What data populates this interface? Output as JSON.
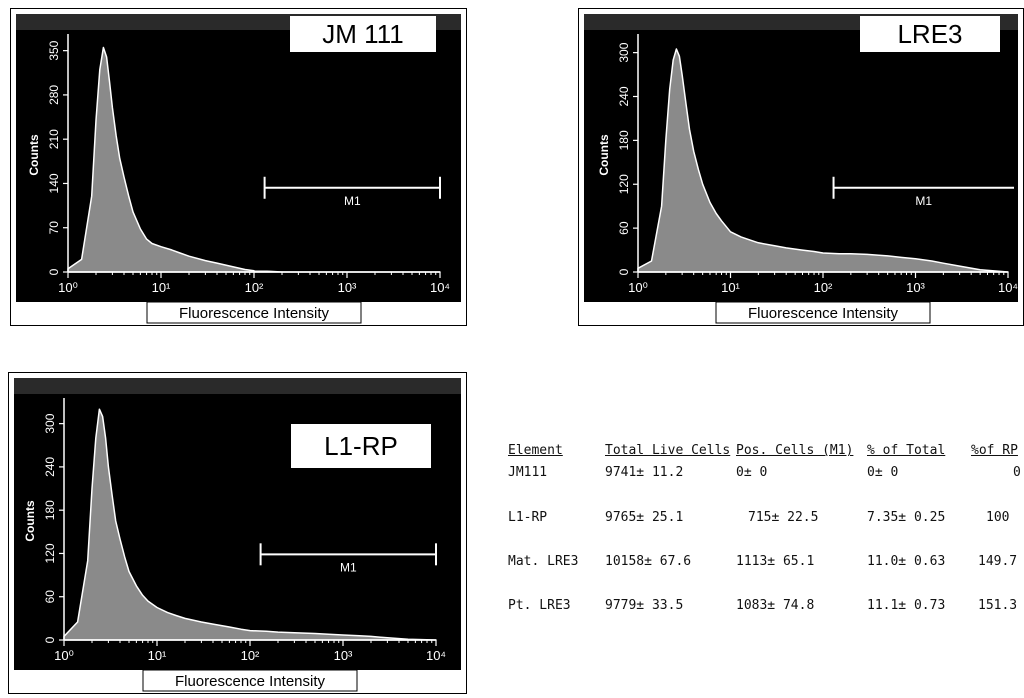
{
  "chart_data": [
    {
      "type": "area",
      "title": "JM 111",
      "xlabel": "Fluorescence Intensity",
      "ylabel": "Counts",
      "xscale": "log",
      "xlim": [
        1,
        10000
      ],
      "ylim": [
        0,
        370
      ],
      "yticks": [
        0,
        70,
        140,
        210,
        280,
        350
      ],
      "x_tick_labels": [
        "10⁰",
        "10¹",
        "10²",
        "10³",
        "10⁴"
      ],
      "ytick_labels": [
        "0",
        "70",
        "140",
        "210",
        "280",
        "350"
      ],
      "marker_label": "M1",
      "marker_range": [
        130,
        10000
      ],
      "x": [
        1,
        1.4,
        1.8,
        2.0,
        2.2,
        2.4,
        2.6,
        2.8,
        3.0,
        3.3,
        3.6,
        4.0,
        4.5,
        5.0,
        6.0,
        7.0,
        8.0,
        10,
        13,
        16,
        20,
        30,
        40,
        60,
        80,
        100,
        150,
        200,
        500,
        1000,
        10000
      ],
      "values": [
        5,
        20,
        120,
        240,
        320,
        355,
        340,
        300,
        260,
        215,
        180,
        150,
        120,
        95,
        68,
        52,
        45,
        40,
        35,
        30,
        25,
        18,
        14,
        8,
        4,
        2,
        1,
        0,
        0,
        0,
        0
      ]
    },
    {
      "type": "area",
      "title": "LRE3",
      "xlabel": "Fluorescence Intensity",
      "ylabel": "Counts",
      "xscale": "log",
      "xlim": [
        1,
        10000
      ],
      "ylim": [
        0,
        320
      ],
      "yticks": [
        0,
        60,
        120,
        180,
        240,
        300
      ],
      "x_tick_labels": [
        "10⁰",
        "10¹",
        "10²",
        "10³",
        "10⁴"
      ],
      "ytick_labels": [
        "0",
        "60",
        "120",
        "180",
        "240",
        "300"
      ],
      "marker_label": "M1",
      "marker_range": [
        130,
        10000
      ],
      "x": [
        1,
        1.4,
        1.8,
        2.0,
        2.2,
        2.4,
        2.6,
        2.8,
        3.0,
        3.3,
        3.6,
        4.0,
        4.5,
        5.0,
        6.0,
        7.0,
        8.0,
        10,
        13,
        16,
        20,
        30,
        40,
        60,
        80,
        100,
        150,
        200,
        300,
        500,
        700,
        1000,
        1500,
        2000,
        3000,
        5000,
        10000
      ],
      "values": [
        5,
        15,
        90,
        180,
        250,
        290,
        305,
        295,
        270,
        230,
        195,
        165,
        140,
        120,
        95,
        80,
        70,
        55,
        48,
        44,
        40,
        36,
        33,
        30,
        28,
        26,
        25,
        25,
        24,
        22,
        20,
        18,
        15,
        12,
        8,
        3,
        0
      ]
    },
    {
      "type": "area",
      "title": "L1-RP",
      "xlabel": "Fluorescence Intensity",
      "ylabel": "Counts",
      "xscale": "log",
      "xlim": [
        1,
        10000
      ],
      "ylim": [
        0,
        330
      ],
      "yticks": [
        0,
        60,
        120,
        180,
        240,
        300
      ],
      "x_tick_labels": [
        "10⁰",
        "10¹",
        "10²",
        "10³",
        "10⁴"
      ],
      "ytick_labels": [
        "0",
        "60",
        "120",
        "180",
        "240",
        "300"
      ],
      "marker_label": "M1",
      "marker_range": [
        130,
        10000
      ],
      "x": [
        1,
        1.4,
        1.8,
        2.0,
        2.2,
        2.4,
        2.6,
        2.8,
        3.0,
        3.3,
        3.6,
        4.0,
        4.5,
        5.0,
        6.0,
        7.0,
        8.0,
        10,
        13,
        16,
        20,
        30,
        40,
        60,
        80,
        100,
        150,
        200,
        300,
        500,
        700,
        1000,
        1500,
        2000,
        3000,
        5000,
        10000
      ],
      "values": [
        5,
        25,
        110,
        210,
        280,
        320,
        310,
        280,
        240,
        200,
        165,
        140,
        115,
        95,
        75,
        62,
        54,
        45,
        38,
        34,
        30,
        25,
        22,
        18,
        15,
        13,
        12,
        11,
        10,
        9,
        8,
        7,
        6,
        5,
        3,
        1,
        0
      ]
    },
    {
      "type": "table",
      "columns": [
        "Element",
        "Total Live Cells",
        "Pos. Cells (M1)",
        "% of Total",
        "%of RP"
      ],
      "rows": [
        [
          "JM111",
          "9741± 11.2",
          "0± 0",
          "0± 0",
          "0"
        ],
        [
          "L1-RP",
          "9765± 25.1",
          "715± 22.5",
          "7.35± 0.25",
          "100"
        ],
        [
          "Mat. LRE3",
          "10158± 67.6",
          "1113± 65.1",
          "11.0± 0.63",
          "149.7"
        ],
        [
          "Pt. LRE3",
          "9779± 33.5",
          "1083± 74.8",
          "11.1± 0.73",
          "151.3"
        ]
      ]
    }
  ]
}
